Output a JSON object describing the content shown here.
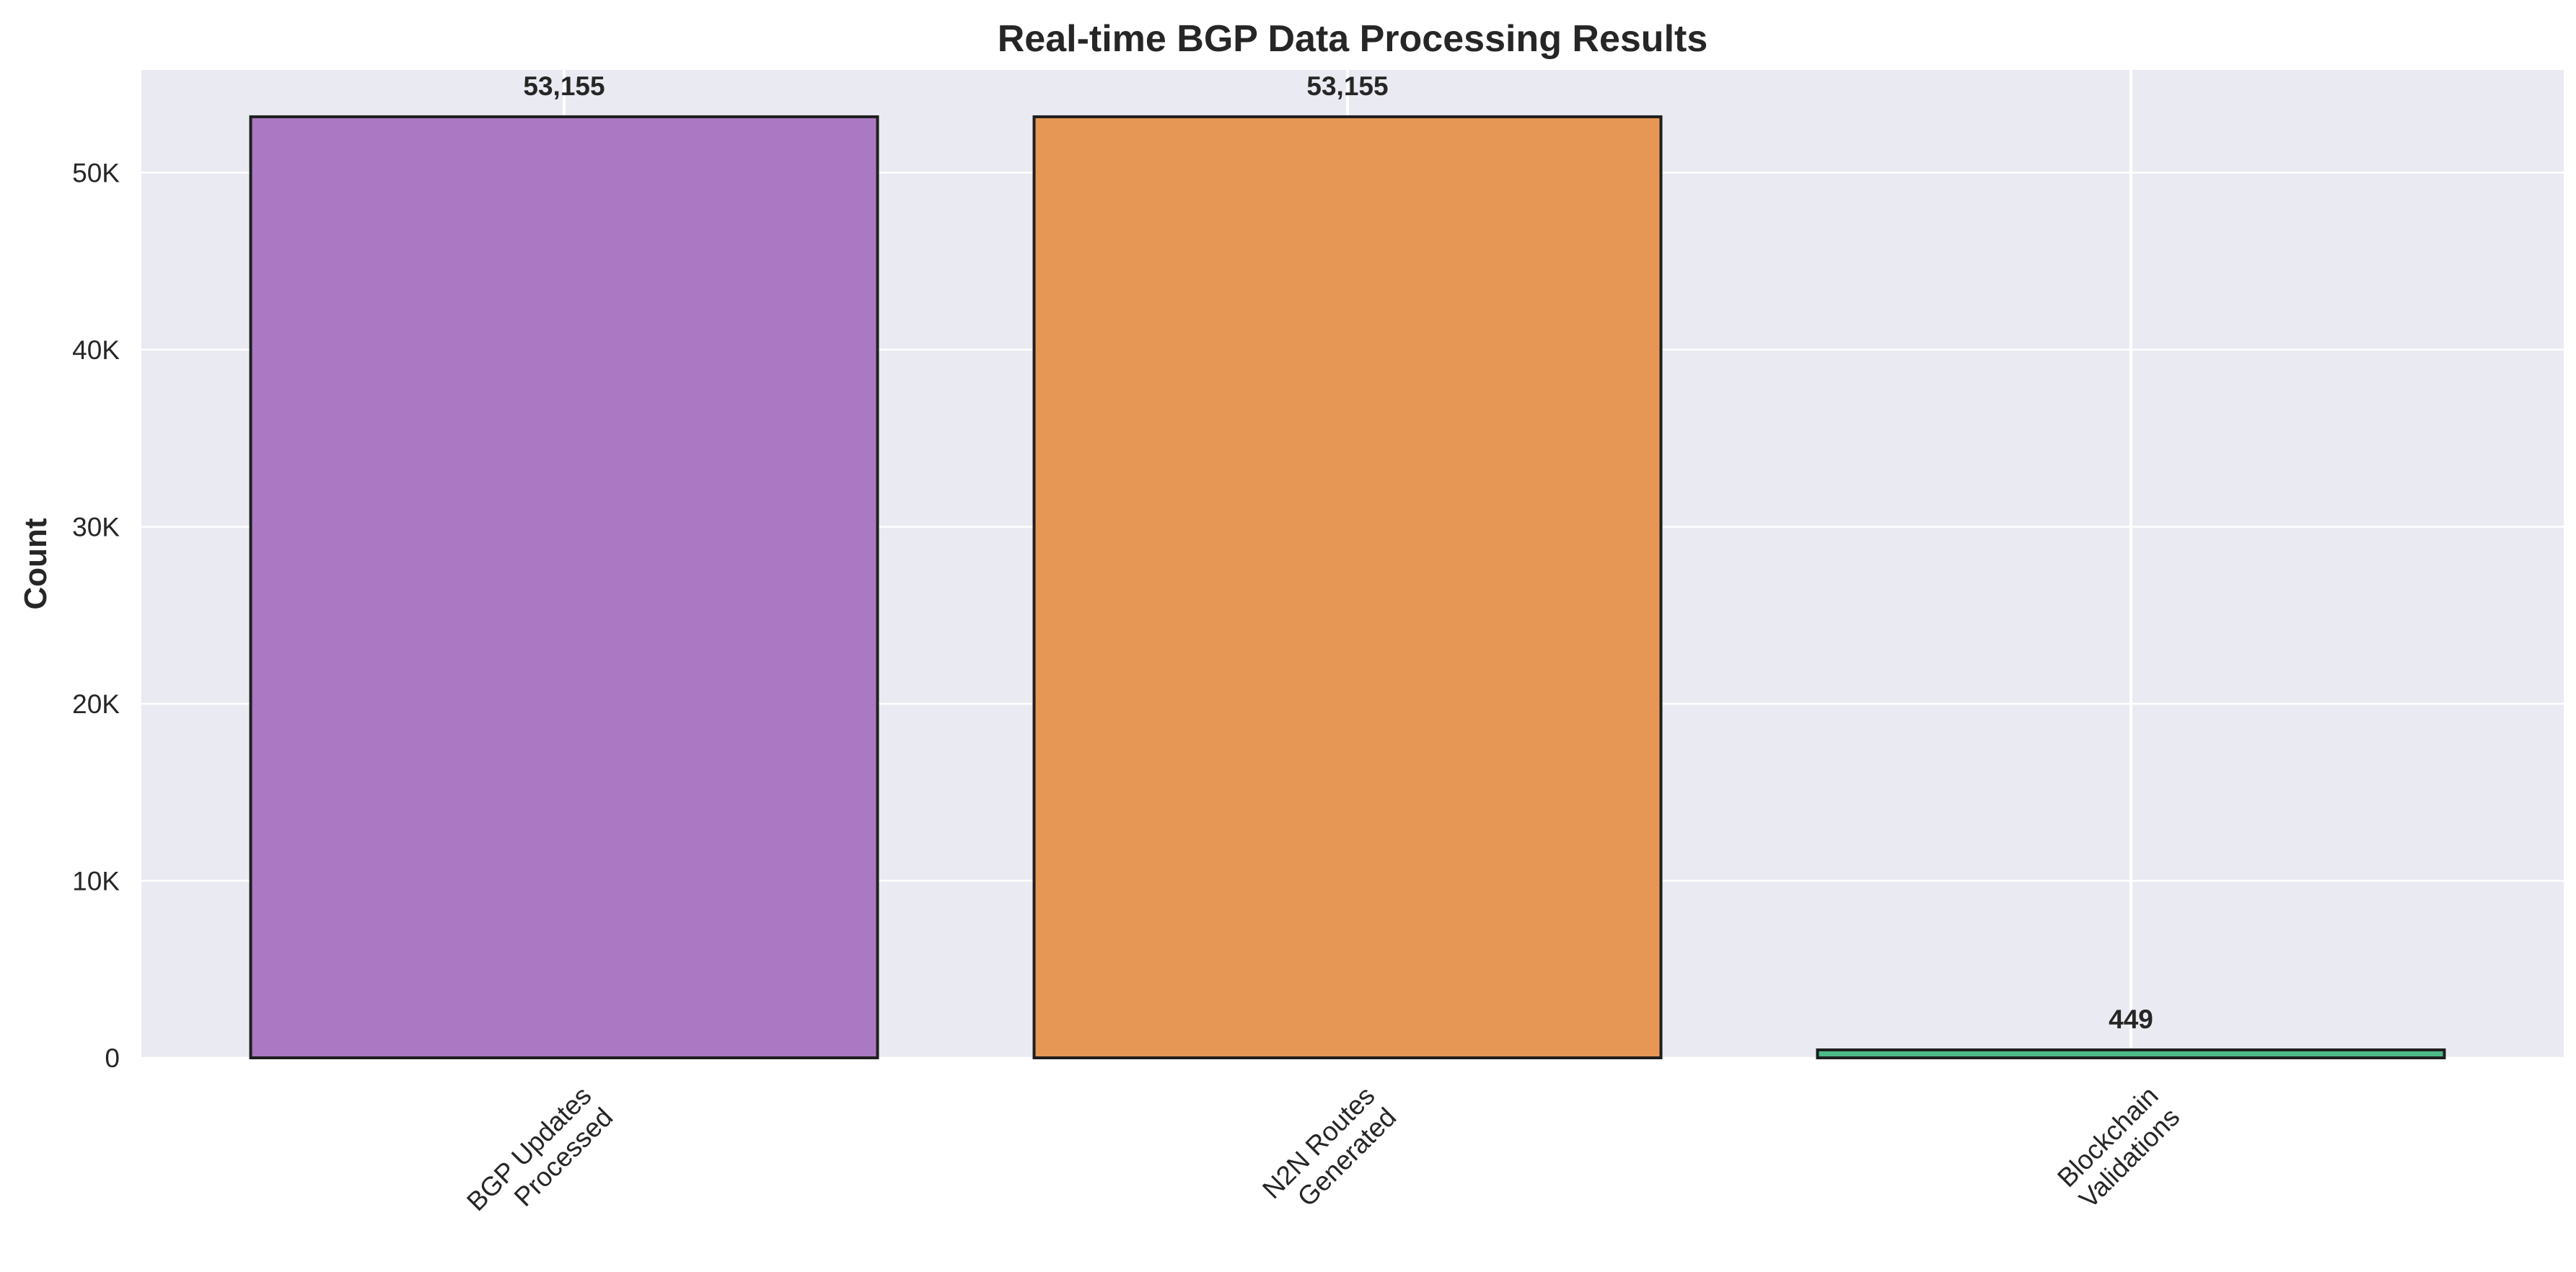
{
  "chart_data": {
    "type": "bar",
    "title": "Real-time BGP Data Processing Results",
    "xlabel": "",
    "ylabel": "Count",
    "categories": [
      [
        "BGP Updates",
        "Processed"
      ],
      [
        "N2N Routes",
        "Generated"
      ],
      [
        "Blockchain",
        "Validations"
      ]
    ],
    "values": [
      53155,
      53155,
      449
    ],
    "value_labels": [
      "53,155",
      "53,155",
      "449"
    ],
    "colors": [
      "#a875c1",
      "#e5944f",
      "#47b884"
    ],
    "ylim": [
      0,
      55800
    ],
    "yticks": [
      0,
      10000,
      20000,
      30000,
      40000,
      50000
    ],
    "ytick_labels": [
      "0",
      "10K",
      "20K",
      "30K",
      "40K",
      "50K"
    ],
    "grid": true
  }
}
